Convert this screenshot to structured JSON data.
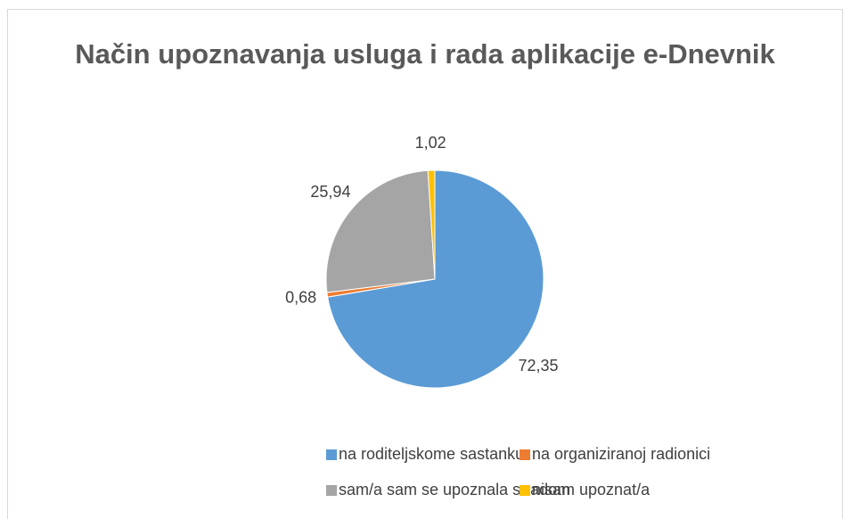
{
  "chart_data": {
    "type": "pie",
    "title": "Način upoznavanja usluga i rada aplikacije e-Dnevnik",
    "categories": [
      "na roditeljskome sastanku",
      "na organiziranoj radionici",
      "sam/a sam se upoznala s radom",
      "nisam upoznat/a"
    ],
    "values": [
      72.35,
      0.68,
      25.94,
      1.02
    ],
    "value_labels": [
      "72,35",
      "0,68",
      "25,94",
      "1,02"
    ],
    "colors": [
      "#5b9bd5",
      "#ed7d31",
      "#a5a5a5",
      "#ffc000"
    ],
    "legend": "bottom"
  }
}
